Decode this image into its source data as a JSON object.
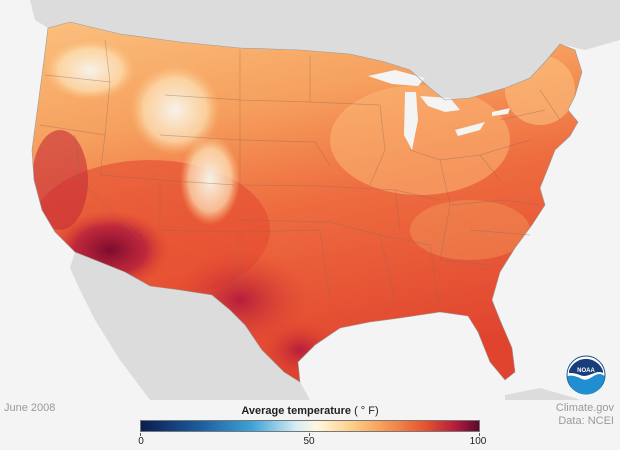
{
  "date_label": "June 2008",
  "legend": {
    "title": "Average temperature",
    "unit": "( ° F)",
    "min_label": "0",
    "mid_label": "50",
    "max_label": "100",
    "range": [
      0,
      100
    ]
  },
  "credit": {
    "source": "Climate.gov",
    "data": "Data: NCEI"
  },
  "logo_text": "NOAA",
  "colors": {
    "background": "#f4f4f4",
    "land_other": "#dcdcdc",
    "cold": "#0b1d4f",
    "mild": "#fff7df",
    "warm": "#f0733e",
    "hot": "#5a0a2c"
  }
}
